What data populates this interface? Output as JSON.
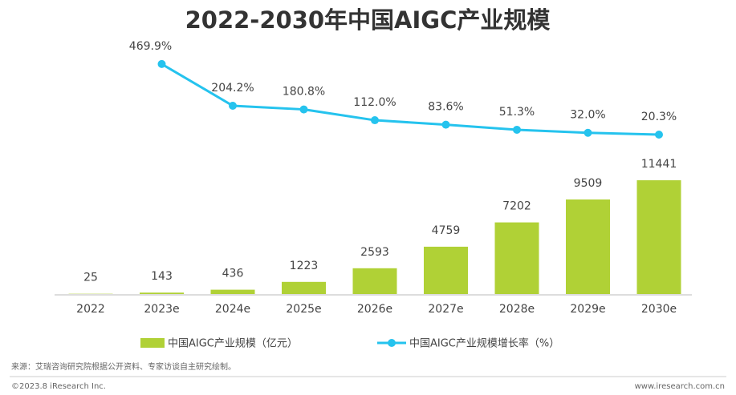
{
  "chart_data": {
    "type": "bar_line",
    "title": "2022-2030年中国AIGC产业规模",
    "categories": [
      "2022",
      "2023e",
      "2024e",
      "2025e",
      "2026e",
      "2027e",
      "2028e",
      "2029e",
      "2030e"
    ],
    "series": [
      {
        "name": "中国AIGC产业规模（亿元）",
        "type": "bar",
        "color": "#b0d136",
        "values": [
          25,
          143,
          436,
          1223,
          2593,
          4759,
          7202,
          9509,
          11441
        ]
      },
      {
        "name": "中国AIGC产业规模增长率（%）",
        "type": "line",
        "axis": "y2",
        "color": "#25c3ee",
        "values": [
          null,
          469.9,
          204.2,
          180.8,
          112.0,
          83.6,
          51.3,
          32.0,
          20.3
        ],
        "value_labels": [
          null,
          "469.9%",
          "204.2%",
          "180.8%",
          "112.0%",
          "83.6%",
          "51.3%",
          "32.0%",
          "20.3%"
        ]
      }
    ],
    "ylim": [
      0,
      12000
    ],
    "y2lim": [
      0,
      500
    ],
    "source": "来源：艾瑞咨询研究院根据公开资料、专家访谈自主研究绘制。",
    "copyright": "©2023.8 iResearch Inc.",
    "website": "www.iresearch.com.cn"
  }
}
